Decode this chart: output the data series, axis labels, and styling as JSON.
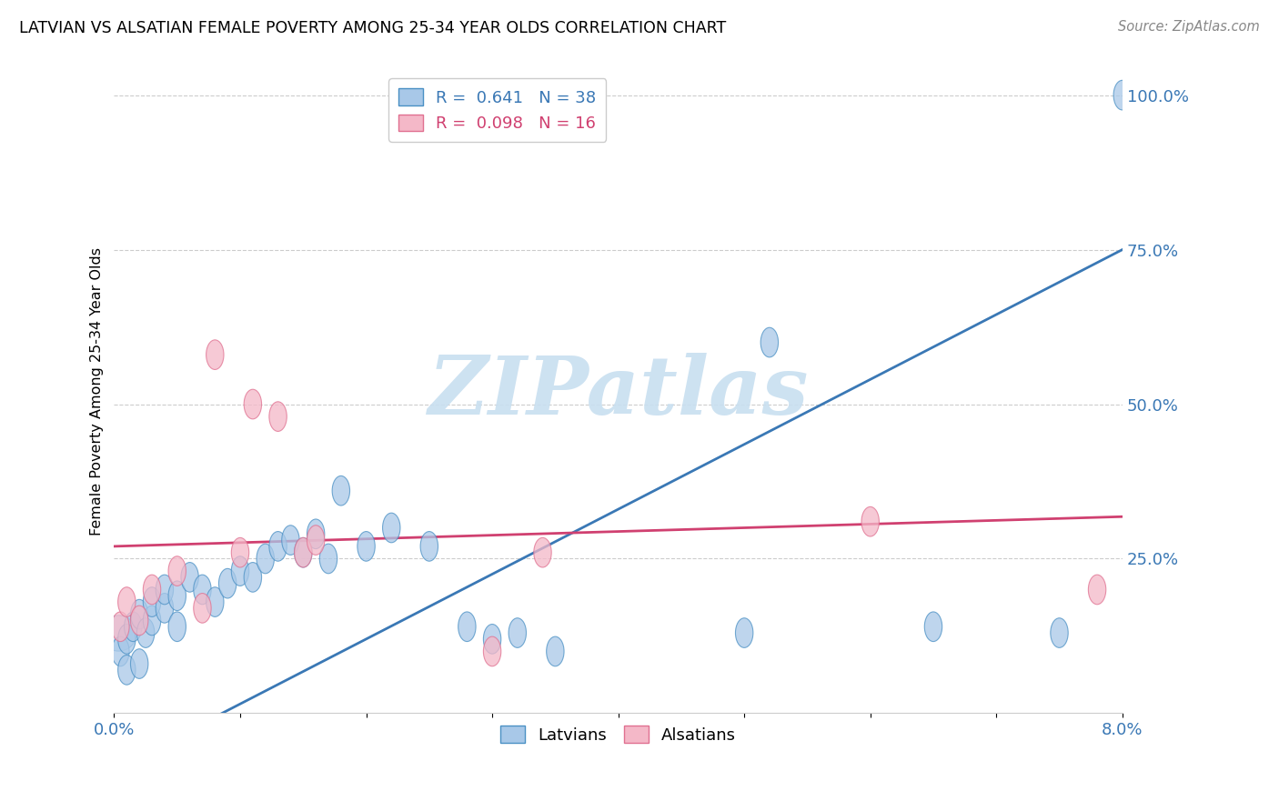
{
  "title": "LATVIAN VS ALSATIAN FEMALE POVERTY AMONG 25-34 YEAR OLDS CORRELATION CHART",
  "source": "Source: ZipAtlas.com",
  "ylabel": "Female Poverty Among 25-34 Year Olds",
  "legend1_label": "R =  0.641   N = 38",
  "legend2_label": "R =  0.098   N = 16",
  "legend_bottom_label1": "Latvians",
  "legend_bottom_label2": "Alsatians",
  "blue_fill": "#a8c8e8",
  "blue_edge": "#4a90c4",
  "pink_fill": "#f4b8c8",
  "pink_edge": "#e07090",
  "blue_line_color": "#3a78b5",
  "pink_line_color": "#d04070",
  "watermark_color": "#c8dff0",
  "xlim": [
    0.0,
    0.08
  ],
  "ylim": [
    0.0,
    1.04
  ],
  "latvian_x": [
    0.0005,
    0.001,
    0.001,
    0.0015,
    0.002,
    0.002,
    0.0025,
    0.003,
    0.003,
    0.004,
    0.004,
    0.005,
    0.005,
    0.006,
    0.007,
    0.008,
    0.009,
    0.01,
    0.011,
    0.012,
    0.013,
    0.014,
    0.015,
    0.016,
    0.017,
    0.018,
    0.02,
    0.022,
    0.025,
    0.028,
    0.03,
    0.032,
    0.035,
    0.05,
    0.052,
    0.065,
    0.075,
    0.08
  ],
  "latvian_y": [
    0.1,
    0.07,
    0.12,
    0.14,
    0.08,
    0.16,
    0.13,
    0.15,
    0.18,
    0.17,
    0.2,
    0.14,
    0.19,
    0.22,
    0.2,
    0.18,
    0.21,
    0.23,
    0.22,
    0.25,
    0.27,
    0.28,
    0.26,
    0.29,
    0.25,
    0.36,
    0.27,
    0.3,
    0.27,
    0.14,
    0.12,
    0.13,
    0.1,
    0.13,
    0.6,
    0.14,
    0.13,
    1.0
  ],
  "alsatian_x": [
    0.0005,
    0.001,
    0.002,
    0.003,
    0.005,
    0.007,
    0.008,
    0.01,
    0.011,
    0.013,
    0.015,
    0.016,
    0.03,
    0.034,
    0.06,
    0.078
  ],
  "alsatian_y": [
    0.14,
    0.18,
    0.15,
    0.2,
    0.23,
    0.17,
    0.58,
    0.26,
    0.5,
    0.48,
    0.26,
    0.28,
    0.1,
    0.26,
    0.31,
    0.2
  ],
  "blue_intercept": -0.09,
  "blue_slope": 10.5,
  "pink_intercept": 0.27,
  "pink_slope": 0.6
}
